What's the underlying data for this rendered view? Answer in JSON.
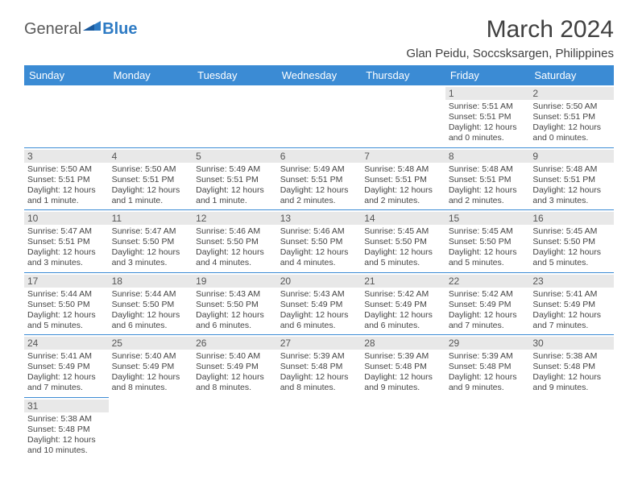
{
  "logo": {
    "text1": "General",
    "text2": "Blue"
  },
  "title": "March 2024",
  "location": "Glan Peidu, Soccsksargen, Philippines",
  "colors": {
    "header_bg": "#3b8bd4",
    "header_text": "#ffffff",
    "daynum_bg": "#e8e8e8",
    "border": "#3b8bd4",
    "text": "#444444"
  },
  "daysOfWeek": [
    "Sunday",
    "Monday",
    "Tuesday",
    "Wednesday",
    "Thursday",
    "Friday",
    "Saturday"
  ],
  "weeks": [
    [
      null,
      null,
      null,
      null,
      null,
      {
        "n": "1",
        "sr": "5:51 AM",
        "ss": "5:51 PM",
        "dl": "12 hours and 0 minutes."
      },
      {
        "n": "2",
        "sr": "5:50 AM",
        "ss": "5:51 PM",
        "dl": "12 hours and 0 minutes."
      }
    ],
    [
      {
        "n": "3",
        "sr": "5:50 AM",
        "ss": "5:51 PM",
        "dl": "12 hours and 1 minute."
      },
      {
        "n": "4",
        "sr": "5:50 AM",
        "ss": "5:51 PM",
        "dl": "12 hours and 1 minute."
      },
      {
        "n": "5",
        "sr": "5:49 AM",
        "ss": "5:51 PM",
        "dl": "12 hours and 1 minute."
      },
      {
        "n": "6",
        "sr": "5:49 AM",
        "ss": "5:51 PM",
        "dl": "12 hours and 2 minutes."
      },
      {
        "n": "7",
        "sr": "5:48 AM",
        "ss": "5:51 PM",
        "dl": "12 hours and 2 minutes."
      },
      {
        "n": "8",
        "sr": "5:48 AM",
        "ss": "5:51 PM",
        "dl": "12 hours and 2 minutes."
      },
      {
        "n": "9",
        "sr": "5:48 AM",
        "ss": "5:51 PM",
        "dl": "12 hours and 3 minutes."
      }
    ],
    [
      {
        "n": "10",
        "sr": "5:47 AM",
        "ss": "5:51 PM",
        "dl": "12 hours and 3 minutes."
      },
      {
        "n": "11",
        "sr": "5:47 AM",
        "ss": "5:50 PM",
        "dl": "12 hours and 3 minutes."
      },
      {
        "n": "12",
        "sr": "5:46 AM",
        "ss": "5:50 PM",
        "dl": "12 hours and 4 minutes."
      },
      {
        "n": "13",
        "sr": "5:46 AM",
        "ss": "5:50 PM",
        "dl": "12 hours and 4 minutes."
      },
      {
        "n": "14",
        "sr": "5:45 AM",
        "ss": "5:50 PM",
        "dl": "12 hours and 5 minutes."
      },
      {
        "n": "15",
        "sr": "5:45 AM",
        "ss": "5:50 PM",
        "dl": "12 hours and 5 minutes."
      },
      {
        "n": "16",
        "sr": "5:45 AM",
        "ss": "5:50 PM",
        "dl": "12 hours and 5 minutes."
      }
    ],
    [
      {
        "n": "17",
        "sr": "5:44 AM",
        "ss": "5:50 PM",
        "dl": "12 hours and 5 minutes."
      },
      {
        "n": "18",
        "sr": "5:44 AM",
        "ss": "5:50 PM",
        "dl": "12 hours and 6 minutes."
      },
      {
        "n": "19",
        "sr": "5:43 AM",
        "ss": "5:50 PM",
        "dl": "12 hours and 6 minutes."
      },
      {
        "n": "20",
        "sr": "5:43 AM",
        "ss": "5:49 PM",
        "dl": "12 hours and 6 minutes."
      },
      {
        "n": "21",
        "sr": "5:42 AM",
        "ss": "5:49 PM",
        "dl": "12 hours and 6 minutes."
      },
      {
        "n": "22",
        "sr": "5:42 AM",
        "ss": "5:49 PM",
        "dl": "12 hours and 7 minutes."
      },
      {
        "n": "23",
        "sr": "5:41 AM",
        "ss": "5:49 PM",
        "dl": "12 hours and 7 minutes."
      }
    ],
    [
      {
        "n": "24",
        "sr": "5:41 AM",
        "ss": "5:49 PM",
        "dl": "12 hours and 7 minutes."
      },
      {
        "n": "25",
        "sr": "5:40 AM",
        "ss": "5:49 PM",
        "dl": "12 hours and 8 minutes."
      },
      {
        "n": "26",
        "sr": "5:40 AM",
        "ss": "5:49 PM",
        "dl": "12 hours and 8 minutes."
      },
      {
        "n": "27",
        "sr": "5:39 AM",
        "ss": "5:48 PM",
        "dl": "12 hours and 8 minutes."
      },
      {
        "n": "28",
        "sr": "5:39 AM",
        "ss": "5:48 PM",
        "dl": "12 hours and 9 minutes."
      },
      {
        "n": "29",
        "sr": "5:39 AM",
        "ss": "5:48 PM",
        "dl": "12 hours and 9 minutes."
      },
      {
        "n": "30",
        "sr": "5:38 AM",
        "ss": "5:48 PM",
        "dl": "12 hours and 9 minutes."
      }
    ],
    [
      {
        "n": "31",
        "sr": "5:38 AM",
        "ss": "5:48 PM",
        "dl": "12 hours and 10 minutes."
      },
      null,
      null,
      null,
      null,
      null,
      null
    ]
  ],
  "labels": {
    "sunrise": "Sunrise: ",
    "sunset": "Sunset: ",
    "daylight": "Daylight: "
  }
}
